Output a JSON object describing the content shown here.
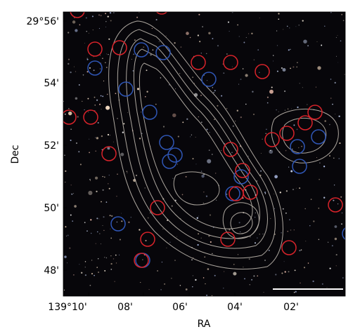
{
  "figure": {
    "xlabel": "RA",
    "ylabel": "Dec",
    "x_ticks": [
      {
        "label": "139°10'"
      },
      {
        "label": "08'"
      },
      {
        "label": "06'"
      },
      {
        "label": "04'"
      },
      {
        "label": "02'"
      }
    ],
    "y_ticks": [
      {
        "label": "29°56'"
      },
      {
        "label": "54'"
      },
      {
        "label": "52'"
      },
      {
        "label": "50'"
      },
      {
        "label": "48'"
      }
    ]
  },
  "colors": {
    "sky": "#07060a",
    "contour": "#c9c2b8",
    "red_marker": "#d8232a",
    "blue_marker": "#2f56b5",
    "scale_bar": "#ffffff"
  },
  "markers": {
    "red_count": 24,
    "blue_count": 17
  }
}
